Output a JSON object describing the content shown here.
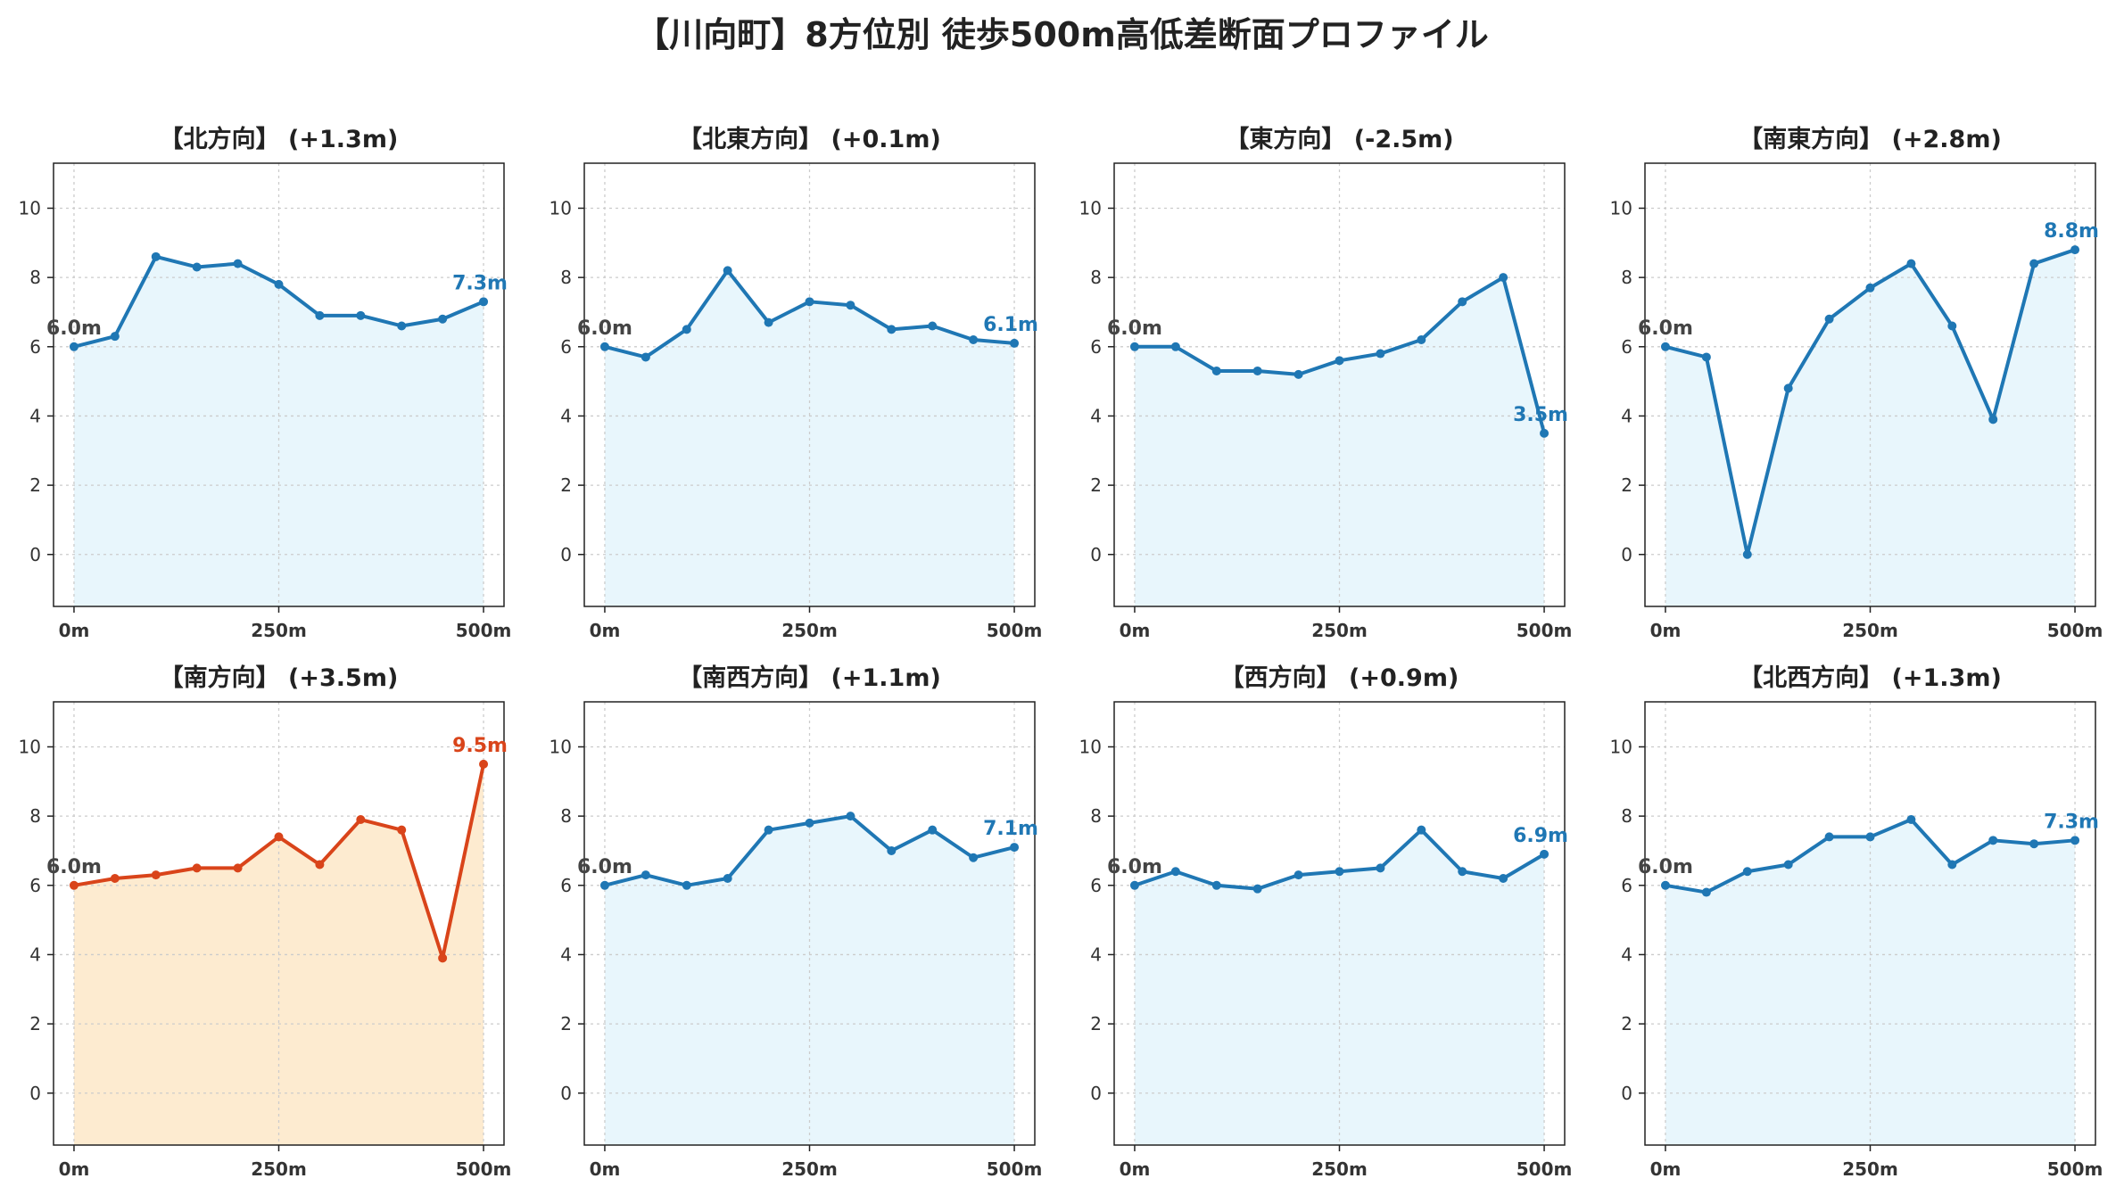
{
  "title": "【川向町】8方位別 徒歩500m高低差断面プロファイル",
  "colors": {
    "normal_line": "#1f77b4",
    "normal_fill": "#e8f6fc",
    "highlight_line": "#d9441a",
    "highlight_fill": "#fdebd0",
    "start_label": "#444444",
    "grid": "#cccccc",
    "axis_text": "#333333"
  },
  "chart_data": [
    {
      "type": "line",
      "title": "【北方向】 (+1.3m)",
      "x": [
        0,
        50,
        100,
        150,
        200,
        250,
        300,
        350,
        400,
        450,
        500
      ],
      "values": [
        6.0,
        6.3,
        8.6,
        8.3,
        8.4,
        7.8,
        6.9,
        6.9,
        6.6,
        6.8,
        7.3
      ],
      "start_label": "6.0m",
      "end_label": "7.3m",
      "xticks": [
        "0m",
        "250m",
        "500m"
      ],
      "yticks": [
        0,
        2,
        4,
        6,
        8,
        10
      ],
      "xlim": [
        -25,
        525
      ],
      "ylim": [
        -1.5,
        11.3
      ],
      "grid": true,
      "highlight": false
    },
    {
      "type": "line",
      "title": "【北東方向】 (+0.1m)",
      "x": [
        0,
        50,
        100,
        150,
        200,
        250,
        300,
        350,
        400,
        450,
        500
      ],
      "values": [
        6.0,
        5.7,
        6.5,
        8.2,
        6.7,
        7.3,
        7.2,
        6.5,
        6.6,
        6.2,
        6.1
      ],
      "start_label": "6.0m",
      "end_label": "6.1m",
      "xticks": [
        "0m",
        "250m",
        "500m"
      ],
      "yticks": [
        0,
        2,
        4,
        6,
        8,
        10
      ],
      "xlim": [
        -25,
        525
      ],
      "ylim": [
        -1.5,
        11.3
      ],
      "grid": true,
      "highlight": false
    },
    {
      "type": "line",
      "title": "【東方向】 (-2.5m)",
      "x": [
        0,
        50,
        100,
        150,
        200,
        250,
        300,
        350,
        400,
        450,
        500
      ],
      "values": [
        6.0,
        6.0,
        5.3,
        5.3,
        5.2,
        5.6,
        5.8,
        6.2,
        7.3,
        8.0,
        3.5
      ],
      "start_label": "6.0m",
      "end_label": "3.5m",
      "xticks": [
        "0m",
        "250m",
        "500m"
      ],
      "yticks": [
        0,
        2,
        4,
        6,
        8,
        10
      ],
      "xlim": [
        -25,
        525
      ],
      "ylim": [
        -1.5,
        11.3
      ],
      "grid": true,
      "highlight": false
    },
    {
      "type": "line",
      "title": "【南東方向】 (+2.8m)",
      "x": [
        0,
        50,
        100,
        150,
        200,
        250,
        300,
        350,
        400,
        450,
        500
      ],
      "values": [
        6.0,
        5.7,
        0.0,
        4.8,
        6.8,
        7.7,
        8.4,
        6.6,
        3.9,
        8.4,
        8.8
      ],
      "start_label": "6.0m",
      "end_label": "8.8m",
      "xticks": [
        "0m",
        "250m",
        "500m"
      ],
      "yticks": [
        0,
        2,
        4,
        6,
        8,
        10
      ],
      "xlim": [
        -25,
        525
      ],
      "ylim": [
        -1.5,
        11.3
      ],
      "grid": true,
      "highlight": false
    },
    {
      "type": "line",
      "title": "【南方向】 (+3.5m)",
      "x": [
        0,
        50,
        100,
        150,
        200,
        250,
        300,
        350,
        400,
        450,
        500
      ],
      "values": [
        6.0,
        6.2,
        6.3,
        6.5,
        6.5,
        7.4,
        6.6,
        7.9,
        7.6,
        3.9,
        9.5
      ],
      "start_label": "6.0m",
      "end_label": "9.5m",
      "xticks": [
        "0m",
        "250m",
        "500m"
      ],
      "yticks": [
        0,
        2,
        4,
        6,
        8,
        10
      ],
      "xlim": [
        -25,
        525
      ],
      "ylim": [
        -1.5,
        11.3
      ],
      "grid": true,
      "highlight": true
    },
    {
      "type": "line",
      "title": "【南西方向】 (+1.1m)",
      "x": [
        0,
        50,
        100,
        150,
        200,
        250,
        300,
        350,
        400,
        450,
        500
      ],
      "values": [
        6.0,
        6.3,
        6.0,
        6.2,
        7.6,
        7.8,
        8.0,
        7.0,
        7.6,
        6.8,
        7.1
      ],
      "start_label": "6.0m",
      "end_label": "7.1m",
      "xticks": [
        "0m",
        "250m",
        "500m"
      ],
      "yticks": [
        0,
        2,
        4,
        6,
        8,
        10
      ],
      "xlim": [
        -25,
        525
      ],
      "ylim": [
        -1.5,
        11.3
      ],
      "grid": true,
      "highlight": false
    },
    {
      "type": "line",
      "title": "【西方向】 (+0.9m)",
      "x": [
        0,
        50,
        100,
        150,
        200,
        250,
        300,
        350,
        400,
        450,
        500
      ],
      "values": [
        6.0,
        6.4,
        6.0,
        5.9,
        6.3,
        6.4,
        6.5,
        7.6,
        6.4,
        6.2,
        6.9
      ],
      "start_label": "6.0m",
      "end_label": "6.9m",
      "xticks": [
        "0m",
        "250m",
        "500m"
      ],
      "yticks": [
        0,
        2,
        4,
        6,
        8,
        10
      ],
      "xlim": [
        -25,
        525
      ],
      "ylim": [
        -1.5,
        11.3
      ],
      "grid": true,
      "highlight": false
    },
    {
      "type": "line",
      "title": "【北西方向】 (+1.3m)",
      "x": [
        0,
        50,
        100,
        150,
        200,
        250,
        300,
        350,
        400,
        450,
        500
      ],
      "values": [
        6.0,
        5.8,
        6.4,
        6.6,
        7.4,
        7.4,
        7.9,
        6.6,
        7.3,
        7.2,
        7.3
      ],
      "start_label": "6.0m",
      "end_label": "7.3m",
      "xticks": [
        "0m",
        "250m",
        "500m"
      ],
      "yticks": [
        0,
        2,
        4,
        6,
        8,
        10
      ],
      "xlim": [
        -25,
        525
      ],
      "ylim": [
        -1.5,
        11.3
      ],
      "grid": true,
      "highlight": false
    }
  ]
}
